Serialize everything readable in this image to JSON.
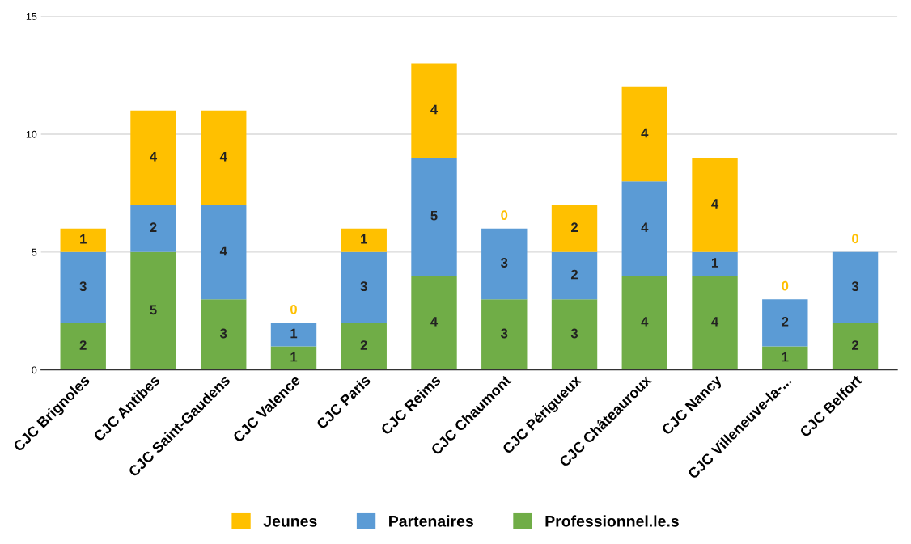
{
  "chart_data": {
    "type": "bar",
    "stacked": true,
    "categories": [
      "CJC Brignoles",
      "CJC Antibes",
      "CJC Saint-Gaudens",
      "CJC Valence",
      "CJC Paris",
      "CJC Reims",
      "CJC Chaumont",
      "CJC Périgueux",
      "CJC Châteauroux",
      "CJC Nancy",
      "CJC Villeneuve-la-...",
      "CJC Belfort"
    ],
    "series": [
      {
        "name": "Professionnel.le.s",
        "color": "#70ad47",
        "values": [
          2,
          5,
          3,
          1,
          2,
          4,
          3,
          3,
          4,
          4,
          1,
          2
        ]
      },
      {
        "name": "Partenaires",
        "color": "#5b9bd5",
        "values": [
          3,
          2,
          4,
          1,
          3,
          5,
          3,
          2,
          4,
          1,
          2,
          3
        ]
      },
      {
        "name": "Jeunes",
        "color": "#ffc000",
        "values": [
          1,
          4,
          4,
          0,
          1,
          4,
          0,
          2,
          4,
          4,
          0,
          0
        ]
      }
    ],
    "ylim": [
      0,
      15
    ],
    "yticks": [
      0,
      5,
      10,
      15
    ],
    "grid": "y",
    "legend": "bottom",
    "data_labels": true
  }
}
